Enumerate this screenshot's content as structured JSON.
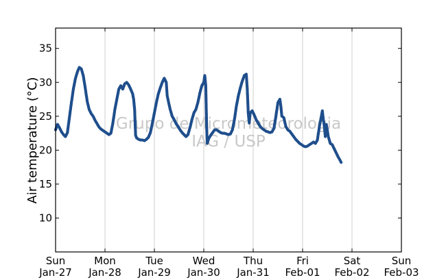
{
  "chart_data": {
    "type": "scatter",
    "title": "",
    "xlabel": "",
    "ylabel": "Air temperature (°C)",
    "ylim": [
      5,
      38
    ],
    "xlim_days": [
      0,
      7
    ],
    "x_start_label": "Sun Jan-27",
    "y_ticks": [
      10,
      15,
      20,
      25,
      30,
      35
    ],
    "grid": "vertical",
    "x_ticks": [
      {
        "day": "Sun",
        "date": "Jan-27"
      },
      {
        "day": "Mon",
        "date": "Jan-28"
      },
      {
        "day": "Tue",
        "date": "Jan-29"
      },
      {
        "day": "Wed",
        "date": "Jan-30"
      },
      {
        "day": "Thu",
        "date": "Jan-31"
      },
      {
        "day": "Fri",
        "date": "Feb-01"
      },
      {
        "day": "Sat",
        "date": "Feb-02"
      },
      {
        "day": "Sun",
        "date": "Feb-03"
      }
    ],
    "watermark": [
      "Grupo de Micrometeorologia",
      "IAG / USP"
    ],
    "series": [
      {
        "color": "#1f4e8c",
        "points": [
          [
            0.0,
            23.0
          ],
          [
            0.04,
            23.8
          ],
          [
            0.08,
            23.3
          ],
          [
            0.12,
            22.7
          ],
          [
            0.16,
            22.3
          ],
          [
            0.2,
            22.0
          ],
          [
            0.24,
            22.6
          ],
          [
            0.28,
            24.8
          ],
          [
            0.32,
            27.0
          ],
          [
            0.36,
            29.0
          ],
          [
            0.4,
            30.5
          ],
          [
            0.44,
            31.5
          ],
          [
            0.48,
            32.2
          ],
          [
            0.52,
            32.0
          ],
          [
            0.56,
            31.0
          ],
          [
            0.6,
            29.2
          ],
          [
            0.64,
            27.2
          ],
          [
            0.68,
            26.0
          ],
          [
            0.72,
            25.4
          ],
          [
            0.76,
            25.0
          ],
          [
            0.8,
            24.4
          ],
          [
            0.84,
            23.9
          ],
          [
            0.88,
            23.4
          ],
          [
            0.92,
            23.1
          ],
          [
            0.96,
            22.9
          ],
          [
            1.0,
            22.7
          ],
          [
            1.04,
            22.5
          ],
          [
            1.08,
            22.3
          ],
          [
            1.12,
            22.5
          ],
          [
            1.16,
            24.0
          ],
          [
            1.2,
            26.0
          ],
          [
            1.24,
            27.5
          ],
          [
            1.28,
            29.0
          ],
          [
            1.32,
            29.5
          ],
          [
            1.36,
            29.0
          ],
          [
            1.4,
            29.8
          ],
          [
            1.44,
            30.0
          ],
          [
            1.48,
            29.6
          ],
          [
            1.52,
            29.0
          ],
          [
            1.56,
            28.3
          ],
          [
            1.58,
            27.5
          ],
          [
            1.6,
            26.0
          ],
          [
            1.61,
            24.0
          ],
          [
            1.62,
            22.2
          ],
          [
            1.64,
            21.8
          ],
          [
            1.68,
            21.6
          ],
          [
            1.72,
            21.5
          ],
          [
            1.76,
            21.5
          ],
          [
            1.8,
            21.4
          ],
          [
            1.84,
            21.6
          ],
          [
            1.88,
            21.9
          ],
          [
            1.92,
            22.6
          ],
          [
            1.96,
            24.0
          ],
          [
            2.0,
            25.5
          ],
          [
            2.04,
            27.0
          ],
          [
            2.08,
            28.3
          ],
          [
            2.12,
            29.2
          ],
          [
            2.16,
            30.0
          ],
          [
            2.2,
            30.6
          ],
          [
            2.24,
            30.0
          ],
          [
            2.26,
            28.0
          ],
          [
            2.28,
            27.3
          ],
          [
            2.32,
            26.0
          ],
          [
            2.36,
            25.0
          ],
          [
            2.4,
            24.5
          ],
          [
            2.44,
            23.9
          ],
          [
            2.48,
            23.5
          ],
          [
            2.52,
            23.0
          ],
          [
            2.56,
            22.6
          ],
          [
            2.6,
            22.3
          ],
          [
            2.64,
            22.0
          ],
          [
            2.68,
            22.3
          ],
          [
            2.72,
            23.3
          ],
          [
            2.76,
            24.5
          ],
          [
            2.8,
            25.5
          ],
          [
            2.84,
            26.0
          ],
          [
            2.88,
            27.0
          ],
          [
            2.92,
            28.4
          ],
          [
            2.96,
            29.5
          ],
          [
            3.0,
            30.0
          ],
          [
            3.02,
            31.0
          ],
          [
            3.04,
            29.5
          ],
          [
            3.05,
            26.0
          ],
          [
            3.06,
            23.0
          ],
          [
            3.07,
            21.0
          ],
          [
            3.1,
            21.7
          ],
          [
            3.14,
            22.2
          ],
          [
            3.18,
            22.6
          ],
          [
            3.22,
            23.0
          ],
          [
            3.26,
            23.0
          ],
          [
            3.3,
            22.8
          ],
          [
            3.34,
            22.6
          ],
          [
            3.38,
            22.5
          ],
          [
            3.42,
            22.5
          ],
          [
            3.46,
            22.4
          ],
          [
            3.5,
            22.3
          ],
          [
            3.54,
            22.4
          ],
          [
            3.58,
            23.0
          ],
          [
            3.62,
            24.5
          ],
          [
            3.66,
            26.5
          ],
          [
            3.7,
            28.0
          ],
          [
            3.74,
            29.2
          ],
          [
            3.78,
            30.2
          ],
          [
            3.82,
            31.0
          ],
          [
            3.86,
            31.2
          ],
          [
            3.88,
            29.0
          ],
          [
            3.9,
            25.5
          ],
          [
            3.92,
            24.0
          ],
          [
            3.94,
            25.5
          ],
          [
            3.98,
            25.8
          ],
          [
            4.02,
            25.2
          ],
          [
            4.06,
            24.5
          ],
          [
            4.1,
            24.0
          ],
          [
            4.14,
            23.5
          ],
          [
            4.18,
            23.2
          ],
          [
            4.22,
            23.0
          ],
          [
            4.26,
            22.8
          ],
          [
            4.3,
            22.7
          ],
          [
            4.34,
            22.6
          ],
          [
            4.38,
            22.7
          ],
          [
            4.42,
            23.2
          ],
          [
            4.46,
            25.0
          ],
          [
            4.5,
            27.0
          ],
          [
            4.54,
            27.5
          ],
          [
            4.56,
            26.5
          ],
          [
            4.58,
            25.0
          ],
          [
            4.62,
            24.8
          ],
          [
            4.66,
            23.5
          ],
          [
            4.7,
            23.0
          ],
          [
            4.74,
            22.8
          ],
          [
            4.78,
            22.4
          ],
          [
            4.82,
            22.0
          ],
          [
            4.86,
            21.6
          ],
          [
            4.9,
            21.3
          ],
          [
            4.94,
            21.0
          ],
          [
            4.98,
            20.8
          ],
          [
            5.02,
            20.6
          ],
          [
            5.06,
            20.5
          ],
          [
            5.1,
            20.6
          ],
          [
            5.14,
            20.8
          ],
          [
            5.18,
            21.0
          ],
          [
            5.22,
            21.2
          ],
          [
            5.26,
            21.0
          ],
          [
            5.3,
            21.5
          ],
          [
            5.34,
            23.5
          ],
          [
            5.38,
            25.0
          ],
          [
            5.4,
            25.8
          ],
          [
            5.42,
            24.5
          ],
          [
            5.44,
            23.5
          ],
          [
            5.46,
            22.0
          ],
          [
            5.48,
            23.8
          ],
          [
            5.5,
            23.0
          ],
          [
            5.52,
            22.0
          ],
          [
            5.56,
            21.0
          ],
          [
            5.6,
            20.8
          ],
          [
            5.64,
            20.2
          ],
          [
            5.68,
            19.6
          ],
          [
            5.72,
            19.0
          ],
          [
            5.76,
            18.5
          ],
          [
            5.78,
            18.2
          ]
        ]
      }
    ]
  }
}
